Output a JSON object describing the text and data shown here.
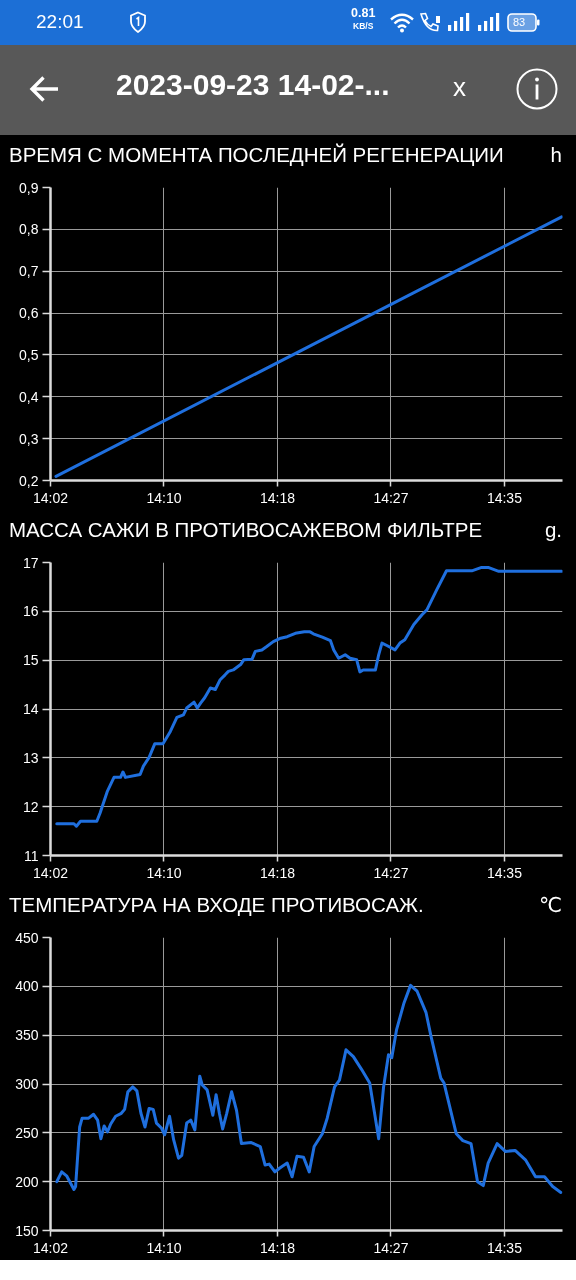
{
  "chart_data": [
    {
      "type": "other",
      "title": "2023-09-23 14-02-...",
      "annotations": [
        "22:01",
        "0.81",
        "KB/S",
        "83",
        "x"
      ]
    },
    {
      "type": "line",
      "title": "ВРЕМЯ С МОМЕНТА ПОСЛЕДНЕЙ РЕГЕНЕРАЦИИ",
      "ylabel": "h",
      "x": [
        14.035,
        14.654
      ],
      "series": [
        {
          "color": "#1f6fde",
          "values": [
            0.21,
            0.83
          ]
        }
      ],
      "xlim": [
        14.0283,
        14.655
      ],
      "xticks": [
        {
          "value": 14.0283,
          "label": "14:02"
        },
        {
          "value": 14.1672,
          "label": "14:10"
        },
        {
          "value": 14.3061,
          "label": "14:18"
        },
        {
          "value": 14.445,
          "label": "14:27"
        },
        {
          "value": 14.5839,
          "label": "14:35"
        }
      ],
      "ylim": [
        0.2,
        0.9
      ],
      "yticks": [
        {
          "value": 0.2,
          "label": "0,2"
        },
        {
          "value": 0.3,
          "label": "0,3"
        },
        {
          "value": 0.4,
          "label": "0,4"
        },
        {
          "value": 0.5,
          "label": "0,5"
        },
        {
          "value": 0.6,
          "label": "0,6"
        },
        {
          "value": 0.7,
          "label": "0,7"
        },
        {
          "value": 0.8,
          "label": "0,8"
        },
        {
          "value": 0.9,
          "label": "0,9"
        }
      ],
      "grid": true
    },
    {
      "type": "line",
      "title": "МАССА САЖИ В ПРОТИВОСАЖЕВОМ ФИЛЬТРЕ",
      "ylabel": "g.",
      "x": [
        14.036,
        14.057,
        14.06,
        14.065,
        14.085,
        14.089,
        14.098,
        14.106,
        14.114,
        14.117,
        14.12,
        14.138,
        14.142,
        14.149,
        14.156,
        14.166,
        14.175,
        14.183,
        14.191,
        14.195,
        14.204,
        14.208,
        14.212,
        14.217,
        14.224,
        14.23,
        14.236,
        14.242,
        14.246,
        14.252,
        14.261,
        14.265,
        14.275,
        14.279,
        14.287,
        14.293,
        14.301,
        14.31,
        14.318,
        14.328,
        14.339,
        14.346,
        14.35,
        14.361,
        14.371,
        14.375,
        14.381,
        14.389,
        14.395,
        14.403,
        14.407,
        14.411,
        14.426,
        14.43,
        14.434,
        14.44,
        14.45,
        14.456,
        14.462,
        14.473,
        14.483,
        14.489,
        14.501,
        14.513,
        14.544,
        14.556,
        14.564,
        14.577,
        14.654
      ],
      "series": [
        {
          "color": "#1f6fde",
          "values": [
            11.65,
            11.65,
            11.6,
            11.7,
            11.7,
            11.87,
            12.32,
            12.6,
            12.6,
            12.71,
            12.6,
            12.66,
            12.83,
            13.01,
            13.29,
            13.29,
            13.54,
            13.83,
            13.88,
            14.02,
            14.14,
            14.02,
            14.12,
            14.23,
            14.43,
            14.4,
            14.6,
            14.7,
            14.77,
            14.8,
            14.91,
            15.01,
            15.02,
            15.18,
            15.21,
            15.28,
            15.38,
            15.45,
            15.48,
            15.55,
            15.58,
            15.58,
            15.54,
            15.47,
            15.4,
            15.21,
            15.04,
            15.11,
            15.04,
            15.01,
            14.76,
            14.8,
            14.8,
            15.11,
            15.35,
            15.3,
            15.21,
            15.35,
            15.42,
            15.73,
            15.93,
            16.03,
            16.44,
            16.83,
            16.83,
            16.9,
            16.9,
            16.82,
            16.82
          ]
        }
      ],
      "xlim": [
        14.0283,
        14.655
      ],
      "xticks": [
        {
          "value": 14.0283,
          "label": "14:02"
        },
        {
          "value": 14.1672,
          "label": "14:10"
        },
        {
          "value": 14.3061,
          "label": "14:18"
        },
        {
          "value": 14.445,
          "label": "14:27"
        },
        {
          "value": 14.5839,
          "label": "14:35"
        }
      ],
      "ylim": [
        11,
        17
      ],
      "yticks": [
        11,
        12,
        13,
        14,
        15,
        16,
        17
      ],
      "grid": true
    },
    {
      "type": "line",
      "title": "ТЕМПЕРАТУРА НА ВХОДЕ ПРОТИВОСАЖ.",
      "ylabel": "℃",
      "x": [
        14.036,
        14.042,
        14.048,
        14.057,
        14.059,
        14.064,
        14.067,
        14.075,
        14.081,
        14.086,
        14.09,
        14.094,
        14.098,
        14.102,
        14.108,
        14.115,
        14.119,
        14.123,
        14.129,
        14.134,
        14.139,
        14.144,
        14.149,
        14.154,
        14.158,
        14.164,
        14.168,
        14.174,
        14.179,
        14.185,
        14.189,
        14.195,
        14.2,
        14.205,
        14.211,
        14.214,
        14.22,
        14.227,
        14.231,
        14.235,
        14.239,
        14.244,
        14.25,
        14.256,
        14.262,
        14.274,
        14.285,
        14.291,
        14.296,
        14.303,
        14.309,
        14.318,
        14.324,
        14.33,
        14.338,
        14.345,
        14.351,
        14.361,
        14.367,
        14.376,
        14.382,
        14.39,
        14.399,
        14.409,
        14.419,
        14.43,
        14.436,
        14.442,
        14.446,
        14.452,
        14.461,
        14.469,
        14.477,
        14.483,
        14.488,
        14.494,
        14.506,
        14.51,
        14.525,
        14.533,
        14.543,
        14.551,
        14.558,
        14.564,
        14.575,
        14.585,
        14.597,
        14.61,
        14.622,
        14.633,
        14.643,
        14.653
      ],
      "series": [
        {
          "color": "#1f6fde",
          "values": [
            200,
            210,
            206,
            192,
            195,
            256,
            265,
            265,
            269,
            263,
            244,
            257,
            251,
            259,
            267,
            270,
            274,
            292,
            297,
            293,
            270,
            256,
            275,
            274,
            260,
            255,
            248,
            267,
            243,
            224,
            227,
            260,
            263,
            253,
            308,
            299,
            294,
            268,
            289,
            270,
            254,
            270,
            292,
            273,
            239,
            240,
            236,
            217,
            218,
            210,
            214,
            219,
            205,
            226,
            225,
            210,
            236,
            249,
            265,
            297,
            304,
            335,
            328,
            315,
            301,
            244,
            297,
            330,
            327,
            356,
            383,
            401,
            395,
            383,
            373,
            349,
            306,
            301,
            249,
            242,
            239,
            200,
            196,
            219,
            239,
            231,
            232,
            222,
            205,
            205,
            195,
            189
          ]
        }
      ],
      "xlim": [
        14.0283,
        14.655
      ],
      "xticks": [
        {
          "value": 14.0283,
          "label": "14:02"
        },
        {
          "value": 14.1672,
          "label": "14:10"
        },
        {
          "value": 14.3061,
          "label": "14:18"
        },
        {
          "value": 14.445,
          "label": "14:27"
        },
        {
          "value": 14.5839,
          "label": "14:35"
        }
      ],
      "ylim": [
        150,
        450
      ],
      "yticks": [
        150,
        200,
        250,
        300,
        350,
        400,
        450
      ],
      "grid": true
    }
  ]
}
